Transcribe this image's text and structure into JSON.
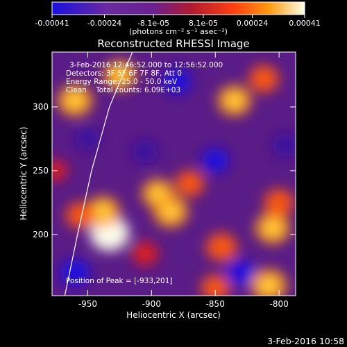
{
  "chart_data": {
    "type": "heatmap",
    "title": "Reconstructed RHESSI Image",
    "xlabel": "Heliocentric X (arcsec)",
    "ylabel": "Heliocentric Y (arcsec)",
    "xlim": [
      -978,
      -787
    ],
    "ylim": [
      152,
      343
    ],
    "x_ticks": [
      -950,
      -900,
      -850,
      -800
    ],
    "x_tick_labels": [
      "-950",
      "-900",
      "-850",
      "-800"
    ],
    "y_ticks": [
      200,
      250,
      300
    ],
    "y_tick_labels": [
      "200",
      "250",
      "300"
    ],
    "colorbar": {
      "range": [
        -0.00041,
        0.00041
      ],
      "ticks": [
        -0.00041,
        -0.00024,
        -8.1e-05,
        8.1e-05,
        0.00024,
        0.00041
      ],
      "tick_labels": [
        "-0.00041",
        "-0.00024",
        "-8.1e-05",
        "8.1e-05",
        "0.00024",
        "0.00041"
      ],
      "units_label": "(photons cm⁻² s⁻¹ asec⁻²)"
    },
    "annotations": [
      "3-Feb-2016 12:46:52.000 to 12:56:52.000",
      "Detectors: 3F 5F 6F 7F 8F, Att 0",
      "Energy Range: 25.0 - 50.0 keV",
      "Clean    Total counts: 6.09E+03"
    ],
    "peak_label": "Position of Peak = [-933,201]",
    "peak": [
      -933,
      201
    ],
    "limb_points": [
      [
        -968,
        152
      ],
      [
        -958,
        200
      ],
      [
        -947,
        250
      ],
      [
        -933,
        300
      ],
      [
        -915,
        343
      ]
    ],
    "blobs": [
      {
        "x": -933,
        "y": 201,
        "v": 1.0
      },
      {
        "x": -938,
        "y": 218,
        "v": 0.75
      },
      {
        "x": -956,
        "y": 215,
        "v": 0.55
      },
      {
        "x": -885,
        "y": 218,
        "v": 0.8
      },
      {
        "x": -895,
        "y": 232,
        "v": 0.7
      },
      {
        "x": -870,
        "y": 240,
        "v": 0.55
      },
      {
        "x": -845,
        "y": 190,
        "v": 0.65
      },
      {
        "x": -805,
        "y": 205,
        "v": 0.8
      },
      {
        "x": -800,
        "y": 225,
        "v": 0.6
      },
      {
        "x": -808,
        "y": 160,
        "v": 0.85
      },
      {
        "x": -850,
        "y": 158,
        "v": 0.55
      },
      {
        "x": -905,
        "y": 185,
        "v": 0.45
      },
      {
        "x": -960,
        "y": 305,
        "v": 0.8
      },
      {
        "x": -925,
        "y": 325,
        "v": 0.7
      },
      {
        "x": -835,
        "y": 305,
        "v": 0.75
      },
      {
        "x": -812,
        "y": 322,
        "v": 0.6
      },
      {
        "x": -975,
        "y": 250,
        "v": 0.3
      },
      {
        "x": -960,
        "y": 170,
        "v": -0.6
      },
      {
        "x": -830,
        "y": 170,
        "v": -0.55
      },
      {
        "x": -905,
        "y": 265,
        "v": -0.45
      },
      {
        "x": -850,
        "y": 258,
        "v": -0.5
      },
      {
        "x": -795,
        "y": 270,
        "v": -0.45
      },
      {
        "x": -880,
        "y": 320,
        "v": -0.55
      },
      {
        "x": -950,
        "y": 275,
        "v": -0.4
      }
    ],
    "colors": {
      "low": "#1a10e0",
      "mid_low": "#8a3cc8",
      "mid": "#6a2090",
      "mid_high": "#e0201c",
      "high": "#ff9a10",
      "top": "#ffffe8"
    }
  },
  "footer": {
    "timestamp": "3-Feb-2016 10:58"
  }
}
